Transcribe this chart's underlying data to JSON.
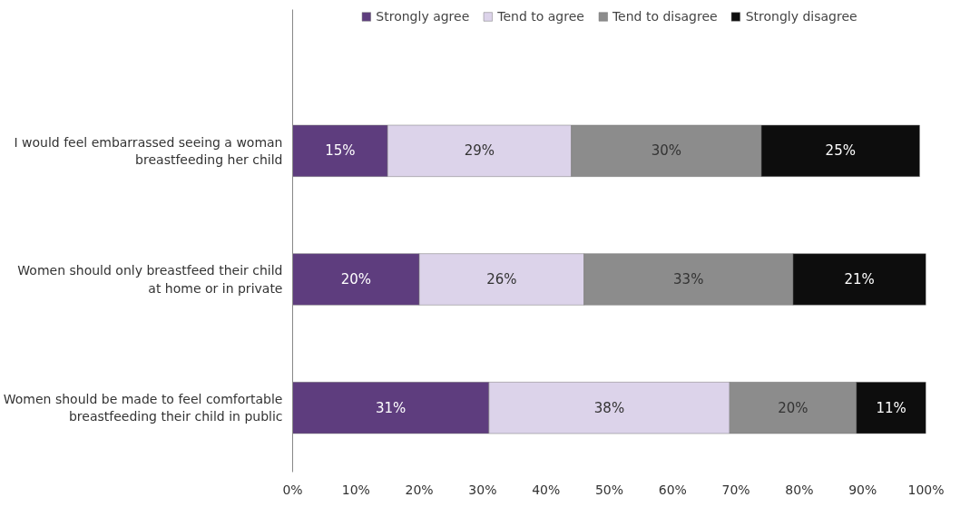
{
  "chart_data": {
    "type": "bar",
    "orientation": "horizontal",
    "stacked": true,
    "legend": "top",
    "categories": [
      "I would feel embarrassed seeing a woman breastfeeding her child",
      "Women should only breastfeed their child at home or in private",
      "Women should be made to feel comfortable breastfeeding their child in public"
    ],
    "xlim": [
      0,
      100
    ],
    "xticks": [
      {
        "value": 0,
        "label": "0%"
      },
      {
        "value": 10,
        "label": "10%"
      },
      {
        "value": 20,
        "label": "20%"
      },
      {
        "value": 30,
        "label": "30%"
      },
      {
        "value": 40,
        "label": "40%"
      },
      {
        "value": 50,
        "label": "50%"
      },
      {
        "value": 60,
        "label": "60%"
      },
      {
        "value": 70,
        "label": "70%"
      },
      {
        "value": 80,
        "label": "80%"
      },
      {
        "value": 90,
        "label": "90%"
      },
      {
        "value": 100,
        "label": "100%"
      }
    ],
    "grid": false,
    "series": [
      {
        "name": "Strongly agree",
        "color": "#5e3d7e",
        "values": [
          15,
          20,
          31
        ],
        "value_labels": [
          "15%",
          "20%",
          "31%"
        ]
      },
      {
        "name": "Tend to agree",
        "color": "#dcd3ea",
        "values": [
          29,
          26,
          38
        ],
        "value_labels": [
          "29%",
          "26%",
          "38%"
        ]
      },
      {
        "name": "Tend to disagree",
        "color": "#8c8c8c",
        "values": [
          30,
          33,
          20
        ],
        "value_labels": [
          "30%",
          "33%",
          "20%"
        ]
      },
      {
        "name": "Strongly disagree",
        "color": "#0d0d0d",
        "values": [
          25,
          21,
          11
        ],
        "value_labels": [
          "25%",
          "21%",
          "11%"
        ]
      }
    ]
  }
}
